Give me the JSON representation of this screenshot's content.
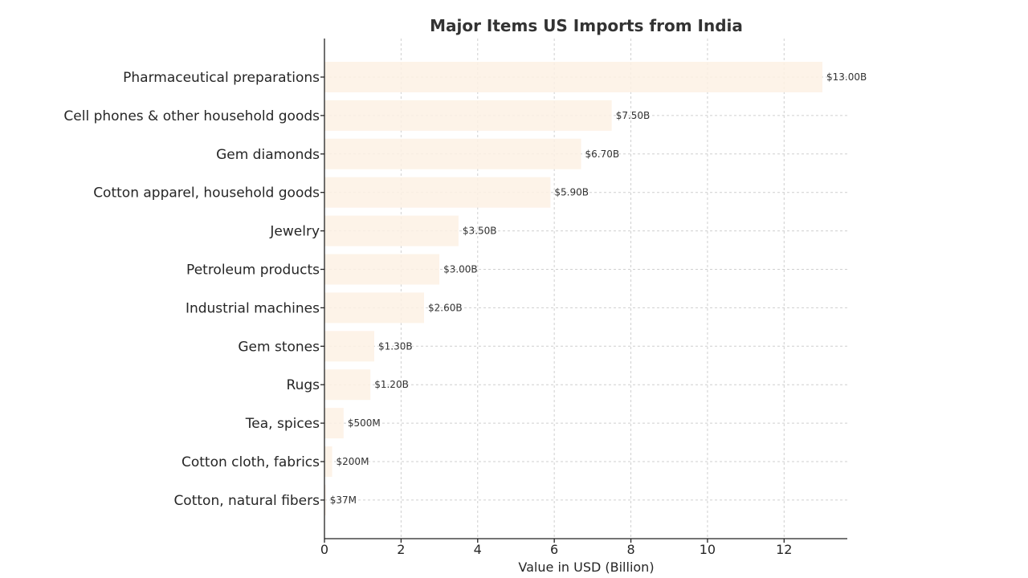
{
  "chart_data": {
    "type": "bar",
    "orientation": "horizontal",
    "title": "Major Items US Imports from India",
    "xlabel": "Value in USD (Billion)",
    "ylabel": "",
    "xlim": [
      0,
      13.65
    ],
    "xticks": [
      0,
      2,
      4,
      6,
      8,
      10,
      12
    ],
    "grid": true,
    "bar_color": "#fdf1e4",
    "categories": [
      "Pharmaceutical preparations",
      "Cell phones & other household goods",
      "Gem diamonds",
      "Cotton apparel, household goods",
      "Jewelry",
      "Petroleum products",
      "Industrial machines",
      "Gem stones",
      "Rugs",
      "Tea, spices",
      "Cotton cloth, fabrics",
      "Cotton, natural fibers"
    ],
    "values": [
      13.0,
      7.5,
      6.7,
      5.9,
      3.5,
      3.0,
      2.6,
      1.3,
      1.2,
      0.5,
      0.2,
      0.037
    ],
    "data_labels": [
      "$13.00B",
      "$7.50B",
      "$6.70B",
      "$5.90B",
      "$3.50B",
      "$3.00B",
      "$2.60B",
      "$1.30B",
      "$1.20B",
      "$500M",
      "$200M",
      "$37M"
    ]
  }
}
